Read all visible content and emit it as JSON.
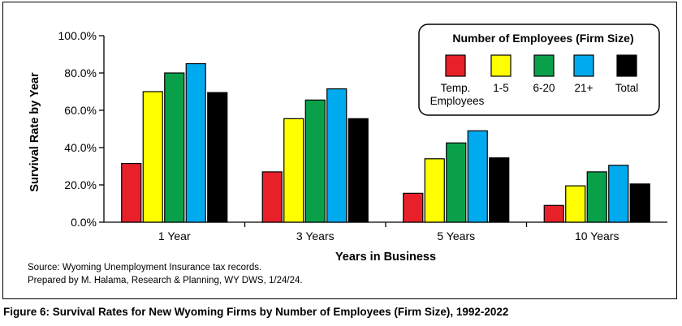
{
  "chart_data": {
    "type": "bar",
    "title": "",
    "xlabel": "Years in Business",
    "ylabel": "Survival Rate by Year",
    "ylim": [
      0,
      100
    ],
    "yticks": [
      "0.0%",
      "20.0%",
      "40.0%",
      "60.0%",
      "80.0%",
      "100.0%"
    ],
    "ytick_values": [
      0,
      20,
      40,
      60,
      80,
      100
    ],
    "grid": false,
    "legend_position": "top-right",
    "legend_title": "Number of Employees (Firm Size)",
    "categories": [
      "1 Year",
      "3 Years",
      "5 Years",
      "10 Years"
    ],
    "series": [
      {
        "name": "Temp. Employees",
        "label_lines": [
          "Temp.",
          "Employees"
        ],
        "color": "#e8202a",
        "values": [
          31.5,
          27.0,
          15.5,
          9.0
        ]
      },
      {
        "name": "1-5",
        "label_lines": [
          "1-5"
        ],
        "color": "#ffff00",
        "values": [
          70.0,
          55.5,
          34.0,
          19.5
        ]
      },
      {
        "name": "6-20",
        "label_lines": [
          "6-20"
        ],
        "color": "#0aa04a",
        "values": [
          80.0,
          65.5,
          42.5,
          27.0
        ]
      },
      {
        "name": "21+",
        "label_lines": [
          "21+"
        ],
        "color": "#00aaee",
        "values": [
          85.0,
          71.5,
          49.0,
          30.5
        ]
      },
      {
        "name": "Total",
        "label_lines": [
          "Total"
        ],
        "color": "#000000",
        "values": [
          69.5,
          55.5,
          34.5,
          20.5
        ]
      }
    ]
  },
  "source_lines": [
    "Source: Wyoming Unemployment Insurance tax records.",
    "Prepared by M. Halama, Research & Planning, WY DWS, 1/24/24."
  ],
  "caption": "Figure 6: Survival Rates for New Wyoming Firms by Number of Employees (Firm Size), 1992-2022"
}
